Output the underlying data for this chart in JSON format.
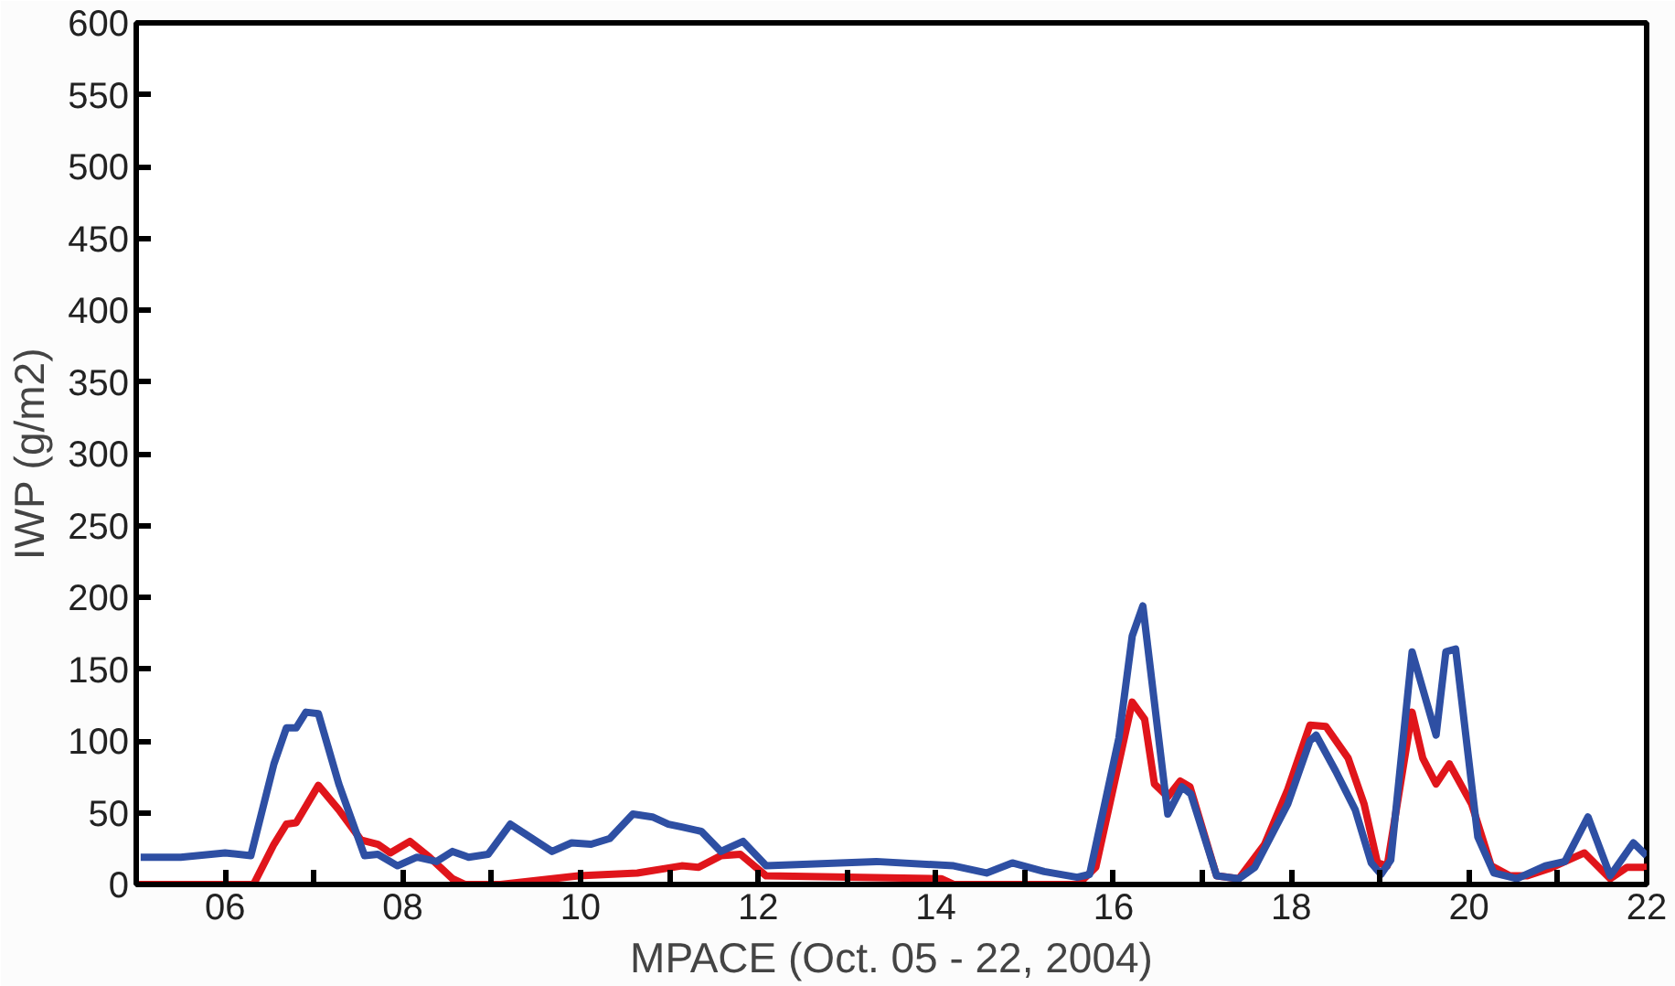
{
  "chart_data": {
    "type": "line",
    "xlabel": "MPACE (Oct. 05 - 22, 2004)",
    "ylabel": "IWP (g/m2)",
    "xlim": [
      5,
      22
    ],
    "ylim": [
      0,
      600
    ],
    "xticks": [
      {
        "value": 6,
        "label": "06"
      },
      {
        "value": 7,
        "label": null
      },
      {
        "value": 8,
        "label": "08"
      },
      {
        "value": 9,
        "label": null
      },
      {
        "value": 10,
        "label": "10"
      },
      {
        "value": 11,
        "label": null
      },
      {
        "value": 12,
        "label": "12"
      },
      {
        "value": 13,
        "label": null
      },
      {
        "value": 14,
        "label": "14"
      },
      {
        "value": 15,
        "label": null
      },
      {
        "value": 16,
        "label": "16"
      },
      {
        "value": 17,
        "label": null
      },
      {
        "value": 18,
        "label": "18"
      },
      {
        "value": 19,
        "label": null
      },
      {
        "value": 20,
        "label": "20"
      },
      {
        "value": 21,
        "label": null
      },
      {
        "value": 22,
        "label": "22"
      }
    ],
    "yticks": [
      0,
      50,
      100,
      150,
      200,
      250,
      300,
      350,
      400,
      450,
      500,
      550,
      600
    ],
    "grid": false,
    "marker": "none",
    "line_style": "solid",
    "series": [
      {
        "color": "#e0151b",
        "x": [
          5.0,
          6.32,
          6.55,
          6.69,
          6.8,
          7.05,
          7.28,
          7.53,
          7.72,
          7.86,
          8.08,
          8.3,
          8.56,
          8.7,
          9.1,
          9.98,
          10.64,
          11.14,
          11.33,
          11.58,
          11.8,
          12.09,
          14.06,
          14.2,
          15.6,
          15.8,
          16.21,
          16.35,
          16.46,
          16.61,
          16.75,
          16.86,
          17.16,
          17.41,
          17.7,
          17.96,
          18.21,
          18.39,
          18.64,
          18.82,
          18.97,
          19.08,
          19.36,
          19.48,
          19.63,
          19.78,
          20.03,
          20.25,
          20.46,
          20.65,
          20.9,
          21.3,
          21.59,
          21.78,
          22.0
        ],
        "values": [
          0,
          0,
          28,
          42,
          43,
          69,
          52,
          31,
          28,
          22,
          30,
          19,
          4,
          0,
          0,
          6,
          8,
          13,
          12,
          20,
          21,
          6,
          4,
          0,
          0,
          12,
          127,
          115,
          70,
          61,
          72,
          68,
          6,
          4,
          28,
          66,
          111,
          110,
          88,
          56,
          15,
          13,
          120,
          88,
          70,
          84,
          56,
          13,
          6,
          6,
          11,
          22,
          4,
          12,
          12
        ]
      },
      {
        "color": "#2e4fa3",
        "x": [
          5.05,
          5.5,
          6.0,
          6.29,
          6.55,
          6.69,
          6.8,
          6.91,
          7.05,
          7.28,
          7.57,
          7.72,
          7.94,
          8.16,
          8.38,
          8.56,
          8.74,
          8.96,
          9.21,
          9.68,
          9.9,
          10.12,
          10.33,
          10.59,
          10.81,
          10.99,
          11.14,
          11.36,
          11.58,
          11.83,
          12.09,
          13.33,
          14.2,
          14.57,
          14.86,
          15.22,
          15.59,
          15.73,
          16.06,
          16.21,
          16.33,
          16.61,
          16.77,
          16.87,
          17.16,
          17.41,
          17.59,
          17.96,
          18.21,
          18.28,
          18.5,
          18.72,
          18.9,
          19.01,
          19.12,
          19.36,
          19.63,
          19.74,
          19.85,
          20.1,
          20.28,
          20.54,
          20.86,
          21.08,
          21.34,
          21.59,
          21.85,
          22.0
        ],
        "values": [
          19,
          19,
          22,
          20,
          84,
          109,
          109,
          120,
          119,
          70,
          20,
          21,
          13,
          19,
          16,
          23,
          19,
          21,
          42,
          23,
          29,
          28,
          32,
          49,
          47,
          42,
          40,
          37,
          23,
          30,
          13,
          16,
          13,
          8,
          15,
          9,
          5,
          7,
          102,
          173,
          194,
          49,
          68,
          63,
          6,
          4,
          12,
          56,
          100,
          104,
          79,
          52,
          15,
          7,
          17,
          162,
          104,
          162,
          164,
          33,
          8,
          4,
          13,
          16,
          47,
          6,
          29,
          20
        ]
      }
    ]
  }
}
